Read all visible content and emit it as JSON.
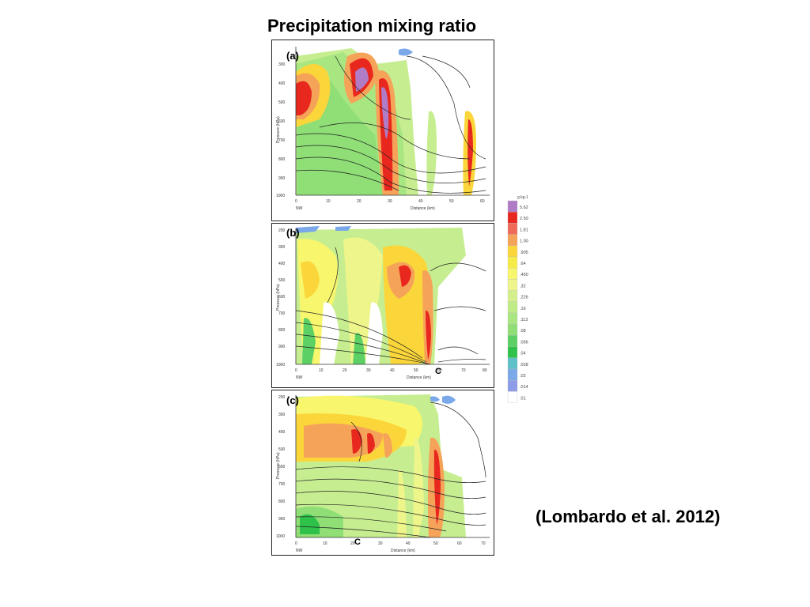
{
  "slide": {
    "title": "Precipitation mixing ratio",
    "citation": "(Lombardo et al. 2012)"
  },
  "panels": [
    {
      "label": "(a)",
      "ylabel": "Pressure (hPa)",
      "xlabel": "Distance (km)",
      "x_start_label": "NW",
      "y_ticks": [
        "300",
        "400",
        "500",
        "600",
        "700",
        "800",
        "900",
        "1000"
      ],
      "x_ticks": [
        "0",
        "10",
        "20",
        "30",
        "40",
        "50",
        "60"
      ],
      "marker": ""
    },
    {
      "label": "(b)",
      "ylabel": "Pressure (hPa)",
      "xlabel": "Distance (km)",
      "x_start_label": "NW",
      "y_ticks": [
        "200",
        "300",
        "400",
        "500",
        "600",
        "700",
        "800",
        "900",
        "1000"
      ],
      "x_ticks": [
        "0",
        "10",
        "20",
        "30",
        "40",
        "50",
        "60",
        "70",
        "80"
      ],
      "marker": "C"
    },
    {
      "label": "(c)",
      "ylabel": "Pressure (hPa)",
      "xlabel": "Distance (km)",
      "x_start_label": "NW",
      "y_ticks": [
        "200",
        "300",
        "400",
        "500",
        "600",
        "700",
        "800",
        "900",
        "1000"
      ],
      "x_ticks": [
        "0",
        "10",
        "20",
        "30",
        "40",
        "50",
        "60",
        "70"
      ],
      "marker": "C"
    }
  ],
  "colorbar": {
    "unit": "g kg-1",
    "labels": [
      "5.62",
      "2.50",
      "1.81",
      "1.00",
      ".905",
      ".64",
      ".450",
      ".32",
      ".226",
      ".16",
      ".113",
      ".08",
      ".056",
      ".04",
      ".028",
      ".02",
      ".014",
      ".01"
    ],
    "colors": [
      "#b07cc6",
      "#e8281e",
      "#f06a5a",
      "#f6a35a",
      "#fbd63a",
      "#f6ec48",
      "#f8f66c",
      "#eef58a",
      "#d4f08c",
      "#bfec86",
      "#a8e682",
      "#8fdf76",
      "#5cd064",
      "#2ec24a",
      "#5ec0c8",
      "#7aa8e8",
      "#8c9ce8",
      "#ffffff"
    ]
  },
  "colors": {
    "background": "#ffffff",
    "panel_border": "#222222"
  }
}
